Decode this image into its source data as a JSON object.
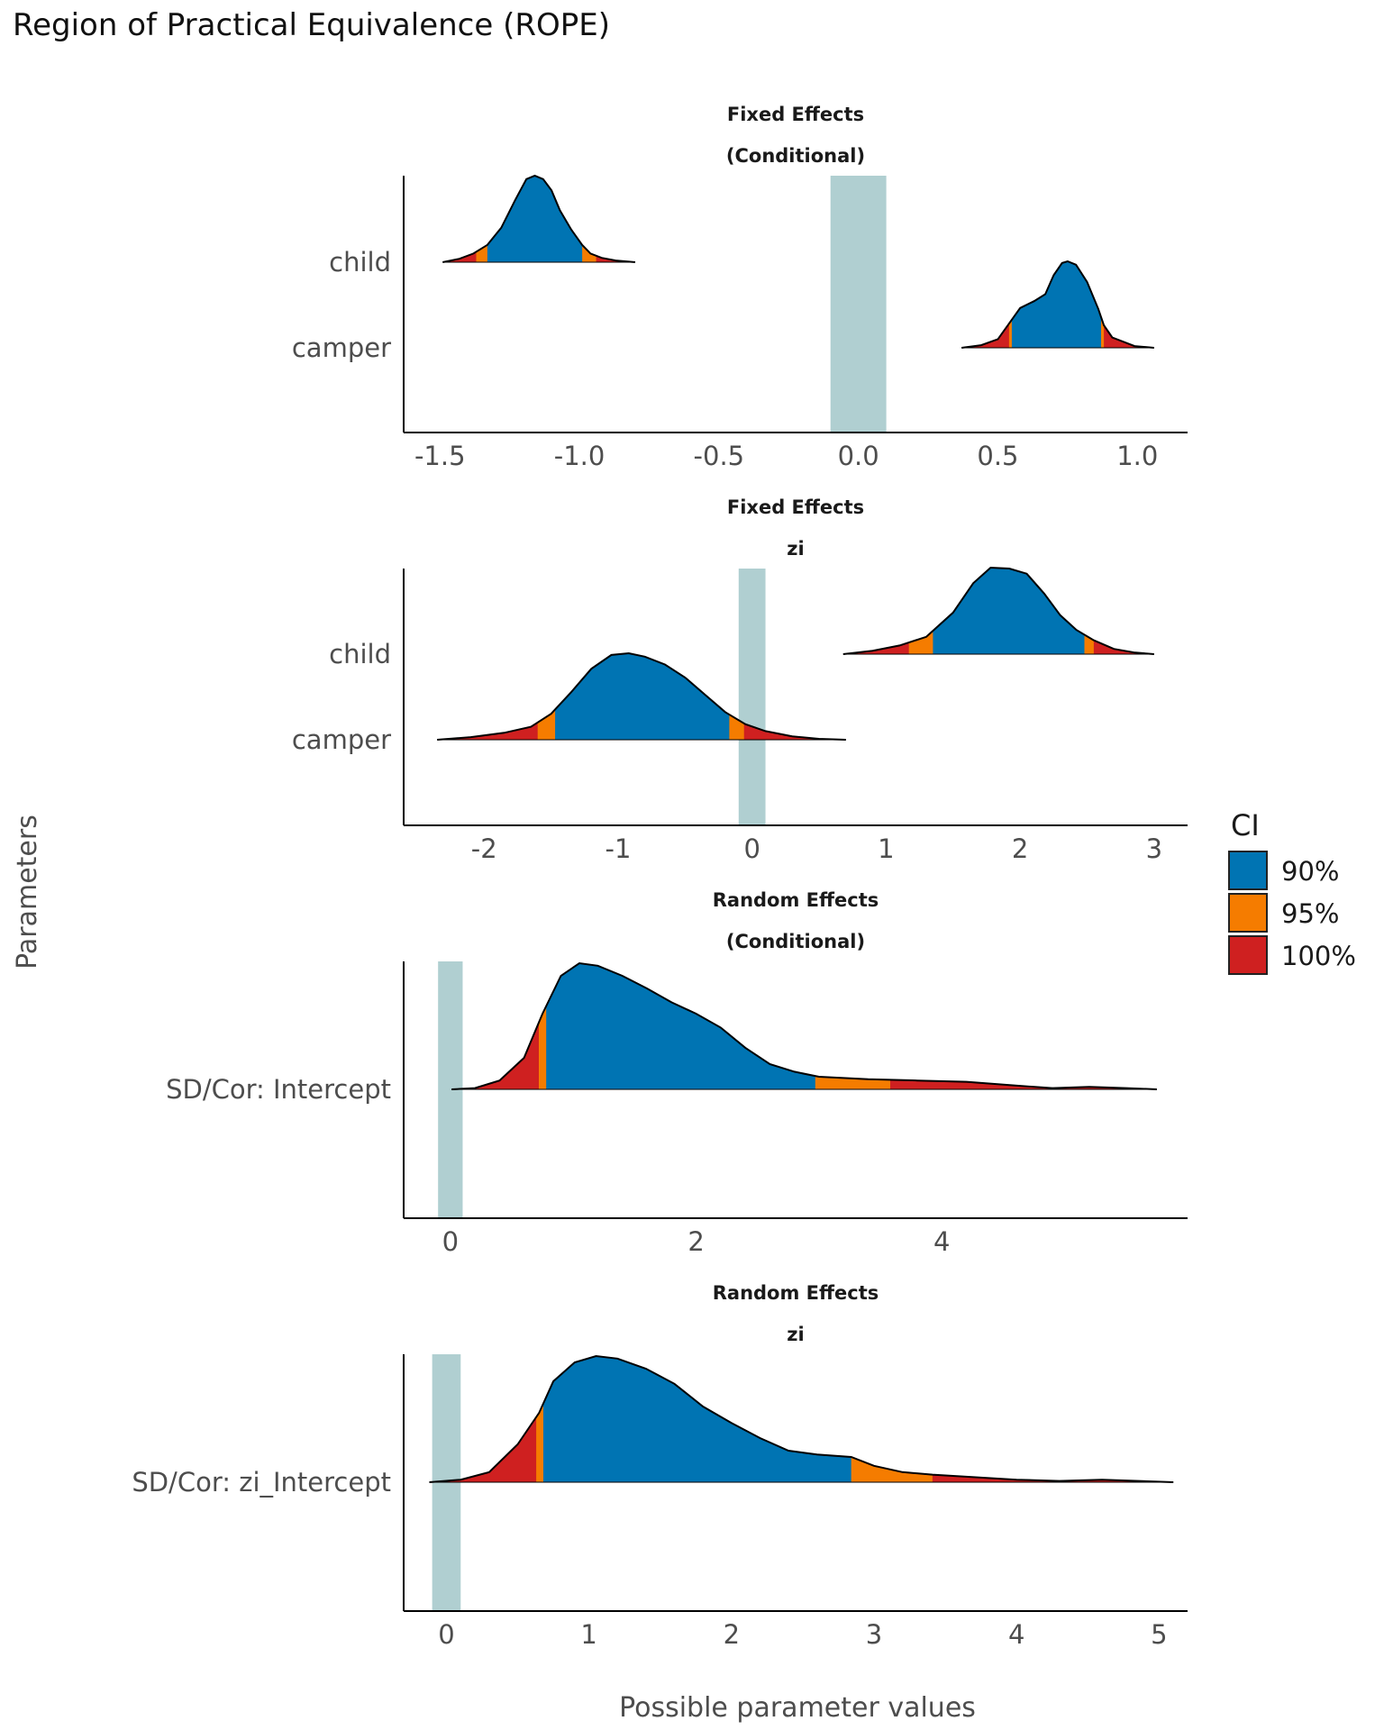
{
  "title": "Region of Practical Equivalence (ROPE)",
  "chart_data": {
    "type": "ridgeline",
    "title": "Region of Practical Equivalence (ROPE)",
    "xlabel": "Possible parameter values",
    "ylabel": "Parameters",
    "legend": {
      "title": "CI",
      "position": "right",
      "items": [
        {
          "label": "90%",
          "color": "#0074b3"
        },
        {
          "label": "95%",
          "color": "#f57c00"
        },
        {
          "label": "100%",
          "color": "#cf2020"
        }
      ]
    },
    "rope_color": "#b0cfd1",
    "panels": [
      {
        "strip": [
          "Fixed Effects",
          "(Conditional)"
        ],
        "xlim": [
          -1.63,
          1.18
        ],
        "xticks": [
          -1.5,
          -1.0,
          -0.5,
          0.0,
          0.5,
          1.0
        ],
        "xtick_labels": [
          "-1.5",
          "-1.0",
          "-0.5",
          "0.0",
          "0.5",
          "1.0"
        ],
        "rope": [
          -0.1,
          0.1
        ],
        "rows": [
          "child",
          "camper"
        ],
        "ridges": [
          {
            "parameter": "child",
            "row": 0,
            "ci90": [
              -1.33,
              -0.99
            ],
            "ci95": [
              -1.37,
              -0.94
            ],
            "ci100": [
              -1.49,
              -0.8
            ],
            "density": [
              [
                -1.49,
                0.0
              ],
              [
                -1.43,
                0.04
              ],
              [
                -1.38,
                0.1
              ],
              [
                -1.33,
                0.2
              ],
              [
                -1.28,
                0.4
              ],
              [
                -1.23,
                0.72
              ],
              [
                -1.19,
                0.96
              ],
              [
                -1.16,
                1.0
              ],
              [
                -1.13,
                0.96
              ],
              [
                -1.1,
                0.83
              ],
              [
                -1.07,
                0.6
              ],
              [
                -1.03,
                0.38
              ],
              [
                -0.99,
                0.2
              ],
              [
                -0.96,
                0.1
              ],
              [
                -0.92,
                0.05
              ],
              [
                -0.87,
                0.02
              ],
              [
                -0.8,
                0.0
              ]
            ]
          },
          {
            "parameter": "camper",
            "row": 1,
            "ci90": [
              0.55,
              0.87
            ],
            "ci95": [
              0.54,
              0.88
            ],
            "ci100": [
              0.37,
              1.06
            ],
            "density": [
              [
                0.37,
                0.0
              ],
              [
                0.44,
                0.03
              ],
              [
                0.5,
                0.1
              ],
              [
                0.54,
                0.28
              ],
              [
                0.58,
                0.46
              ],
              [
                0.63,
                0.54
              ],
              [
                0.67,
                0.62
              ],
              [
                0.7,
                0.84
              ],
              [
                0.73,
                0.98
              ],
              [
                0.75,
                1.0
              ],
              [
                0.78,
                0.96
              ],
              [
                0.82,
                0.76
              ],
              [
                0.86,
                0.45
              ],
              [
                0.88,
                0.26
              ],
              [
                0.91,
                0.12
              ],
              [
                0.95,
                0.07
              ],
              [
                0.99,
                0.02
              ],
              [
                1.06,
                0.0
              ]
            ]
          }
        ]
      },
      {
        "strip": [
          "Fixed Effects",
          "zi"
        ],
        "xlim": [
          -2.6,
          3.25
        ],
        "xticks": [
          -2,
          -1,
          0,
          1,
          2,
          3
        ],
        "xtick_labels": [
          "-2",
          "-1",
          "0",
          "1",
          "2",
          "3"
        ],
        "rope": [
          -0.1,
          0.1
        ],
        "rows": [
          "child",
          "camper"
        ],
        "ridges": [
          {
            "parameter": "child",
            "row": 0,
            "ci90": [
              1.35,
              2.48
            ],
            "ci95": [
              1.17,
              2.55
            ],
            "ci100": [
              0.68,
              3.0
            ],
            "density": [
              [
                0.68,
                0.0
              ],
              [
                0.9,
                0.04
              ],
              [
                1.1,
                0.1
              ],
              [
                1.3,
                0.2
              ],
              [
                1.5,
                0.48
              ],
              [
                1.65,
                0.82
              ],
              [
                1.78,
                1.0
              ],
              [
                1.92,
                0.99
              ],
              [
                2.05,
                0.93
              ],
              [
                2.18,
                0.7
              ],
              [
                2.3,
                0.45
              ],
              [
                2.42,
                0.28
              ],
              [
                2.55,
                0.16
              ],
              [
                2.7,
                0.06
              ],
              [
                2.85,
                0.02
              ],
              [
                3.0,
                0.0
              ]
            ]
          },
          {
            "parameter": "camper",
            "row": 1,
            "ci90": [
              -1.47,
              -0.17
            ],
            "ci95": [
              -1.6,
              -0.06
            ],
            "ci100": [
              -2.35,
              0.7
            ],
            "density": [
              [
                -2.35,
                0.0
              ],
              [
                -2.1,
                0.03
              ],
              [
                -1.85,
                0.08
              ],
              [
                -1.65,
                0.15
              ],
              [
                -1.5,
                0.3
              ],
              [
                -1.35,
                0.55
              ],
              [
                -1.2,
                0.82
              ],
              [
                -1.05,
                0.98
              ],
              [
                -0.92,
                1.0
              ],
              [
                -0.8,
                0.96
              ],
              [
                -0.65,
                0.87
              ],
              [
                -0.5,
                0.72
              ],
              [
                -0.35,
                0.52
              ],
              [
                -0.2,
                0.32
              ],
              [
                -0.05,
                0.18
              ],
              [
                0.1,
                0.1
              ],
              [
                0.3,
                0.04
              ],
              [
                0.5,
                0.01
              ],
              [
                0.7,
                0.0
              ]
            ]
          }
        ]
      },
      {
        "strip": [
          "Random Effects",
          "(Conditional)"
        ],
        "xlim": [
          -0.38,
          6.0
        ],
        "xticks": [
          0,
          2,
          4
        ],
        "xtick_labels": [
          "0",
          "2",
          "4"
        ],
        "rope": [
          -0.1,
          0.1
        ],
        "rows": [
          "SD/Cor:  Intercept"
        ],
        "ridges": [
          {
            "parameter": "SD/Cor:  Intercept",
            "row": 0,
            "ci90": [
              0.78,
              2.97
            ],
            "ci95": [
              0.72,
              3.58
            ],
            "ci100": [
              0.01,
              5.75
            ],
            "density": [
              [
                0.01,
                0.0
              ],
              [
                0.2,
                0.01
              ],
              [
                0.4,
                0.07
              ],
              [
                0.6,
                0.25
              ],
              [
                0.75,
                0.6
              ],
              [
                0.9,
                0.9
              ],
              [
                1.05,
                1.0
              ],
              [
                1.2,
                0.98
              ],
              [
                1.4,
                0.9
              ],
              [
                1.6,
                0.8
              ],
              [
                1.8,
                0.69
              ],
              [
                2.0,
                0.6
              ],
              [
                2.2,
                0.49
              ],
              [
                2.4,
                0.33
              ],
              [
                2.6,
                0.2
              ],
              [
                2.8,
                0.14
              ],
              [
                3.0,
                0.1
              ],
              [
                3.4,
                0.08
              ],
              [
                3.8,
                0.07
              ],
              [
                4.2,
                0.06
              ],
              [
                4.6,
                0.03
              ],
              [
                4.9,
                0.01
              ],
              [
                5.2,
                0.02
              ],
              [
                5.5,
                0.01
              ],
              [
                5.75,
                0.0
              ]
            ]
          }
        ]
      },
      {
        "strip": [
          "Random Effects",
          "zi"
        ],
        "xlim": [
          -0.3,
          5.2
        ],
        "xticks": [
          0,
          1,
          2,
          3,
          4,
          5
        ],
        "xtick_labels": [
          "0",
          "1",
          "2",
          "3",
          "4",
          "5"
        ],
        "rope": [
          -0.1,
          0.1
        ],
        "rows": [
          "SD/Cor:  zi_Intercept"
        ],
        "ridges": [
          {
            "parameter": "SD/Cor:  zi_Intercept",
            "row": 0,
            "ci90": [
              0.68,
              2.84
            ],
            "ci95": [
              0.63,
              3.41
            ],
            "ci100": [
              -0.12,
              5.1
            ],
            "density": [
              [
                -0.12,
                0.0
              ],
              [
                0.1,
                0.02
              ],
              [
                0.3,
                0.08
              ],
              [
                0.5,
                0.3
              ],
              [
                0.65,
                0.55
              ],
              [
                0.75,
                0.8
              ],
              [
                0.9,
                0.95
              ],
              [
                1.05,
                1.0
              ],
              [
                1.2,
                0.98
              ],
              [
                1.4,
                0.9
              ],
              [
                1.6,
                0.78
              ],
              [
                1.8,
                0.6
              ],
              [
                2.0,
                0.47
              ],
              [
                2.2,
                0.35
              ],
              [
                2.4,
                0.25
              ],
              [
                2.6,
                0.22
              ],
              [
                2.84,
                0.2
              ],
              [
                3.0,
                0.13
              ],
              [
                3.2,
                0.08
              ],
              [
                3.41,
                0.06
              ],
              [
                3.7,
                0.04
              ],
              [
                4.0,
                0.02
              ],
              [
                4.3,
                0.01
              ],
              [
                4.6,
                0.02
              ],
              [
                5.1,
                0.0
              ]
            ]
          }
        ]
      }
    ]
  }
}
